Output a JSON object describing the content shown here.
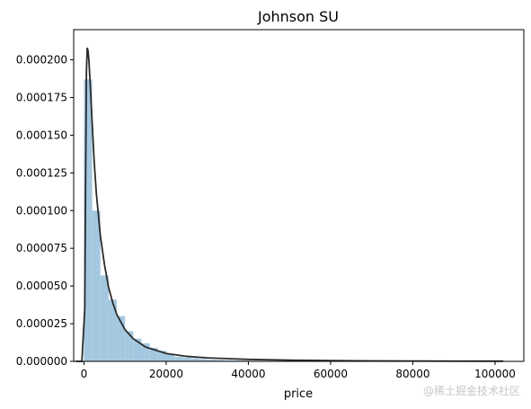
{
  "chart_data": {
    "type": "bar",
    "title": "Johnson SU",
    "xlabel": "price",
    "ylabel": "",
    "xlim": [
      -2500,
      107000
    ],
    "ylim": [
      0,
      0.00022
    ],
    "x_ticks": [
      0,
      20000,
      40000,
      60000,
      80000,
      100000
    ],
    "y_ticks": [
      "0.000000",
      "0.000025",
      "0.000050",
      "0.000075",
      "0.000100",
      "0.000125",
      "0.000150",
      "0.000175",
      "0.000200"
    ],
    "grid": false,
    "legend": "none",
    "histogram": {
      "bin_width": 2000,
      "color": "#a4c8e0",
      "bins": [
        {
          "x0": 0,
          "y": 0.000187
        },
        {
          "x0": 2000,
          "y": 0.0001
        },
        {
          "x0": 4000,
          "y": 5.7e-05
        },
        {
          "x0": 6000,
          "y": 4.1e-05
        },
        {
          "x0": 8000,
          "y": 3e-05
        },
        {
          "x0": 10000,
          "y": 2e-05
        },
        {
          "x0": 12000,
          "y": 1.5e-05
        },
        {
          "x0": 14000,
          "y": 1.2e-05
        },
        {
          "x0": 16000,
          "y": 9e-06
        },
        {
          "x0": 18000,
          "y": 7e-06
        },
        {
          "x0": 20000,
          "y": 5e-06
        },
        {
          "x0": 22000,
          "y": 3e-06
        },
        {
          "x0": 24000,
          "y": 2.5e-06
        },
        {
          "x0": 26000,
          "y": 2e-06
        },
        {
          "x0": 28000,
          "y": 1.5e-06
        },
        {
          "x0": 30000,
          "y": 1.2e-06
        },
        {
          "x0": 32000,
          "y": 1e-06
        },
        {
          "x0": 34000,
          "y": 8e-07
        },
        {
          "x0": 36000,
          "y": 6e-07
        },
        {
          "x0": 38000,
          "y": 5e-07
        }
      ]
    },
    "fit_curve": {
      "name": "Johnson SU",
      "color": "#2b2b2b",
      "x": [
        -2000,
        -500,
        200,
        400,
        600,
        800,
        1000,
        1200,
        1500,
        2000,
        2500,
        3000,
        4000,
        5000,
        6000,
        7000,
        8000,
        10000,
        12000,
        15000,
        20000,
        25000,
        30000,
        40000,
        50000,
        60000,
        70000,
        80000,
        90000,
        102000
      ],
      "y": [
        0.0,
        0.0,
        3.5e-05,
        0.00012,
        0.000192,
        0.000208,
        0.000206,
        0.0002,
        0.000185,
        0.000158,
        0.000132,
        0.000112,
        8.3e-05,
        6.4e-05,
        4.9e-05,
        3.9e-05,
        3.1e-05,
        2.1e-05,
        1.5e-05,
        9.5e-06,
        5.2e-06,
        3.3e-06,
        2.3e-06,
        1.3e-06,
        8e-07,
        5e-07,
        3e-07,
        2e-07,
        1.5e-07,
        1e-07
      ]
    }
  },
  "watermark": "@稀土掘金技术社区"
}
